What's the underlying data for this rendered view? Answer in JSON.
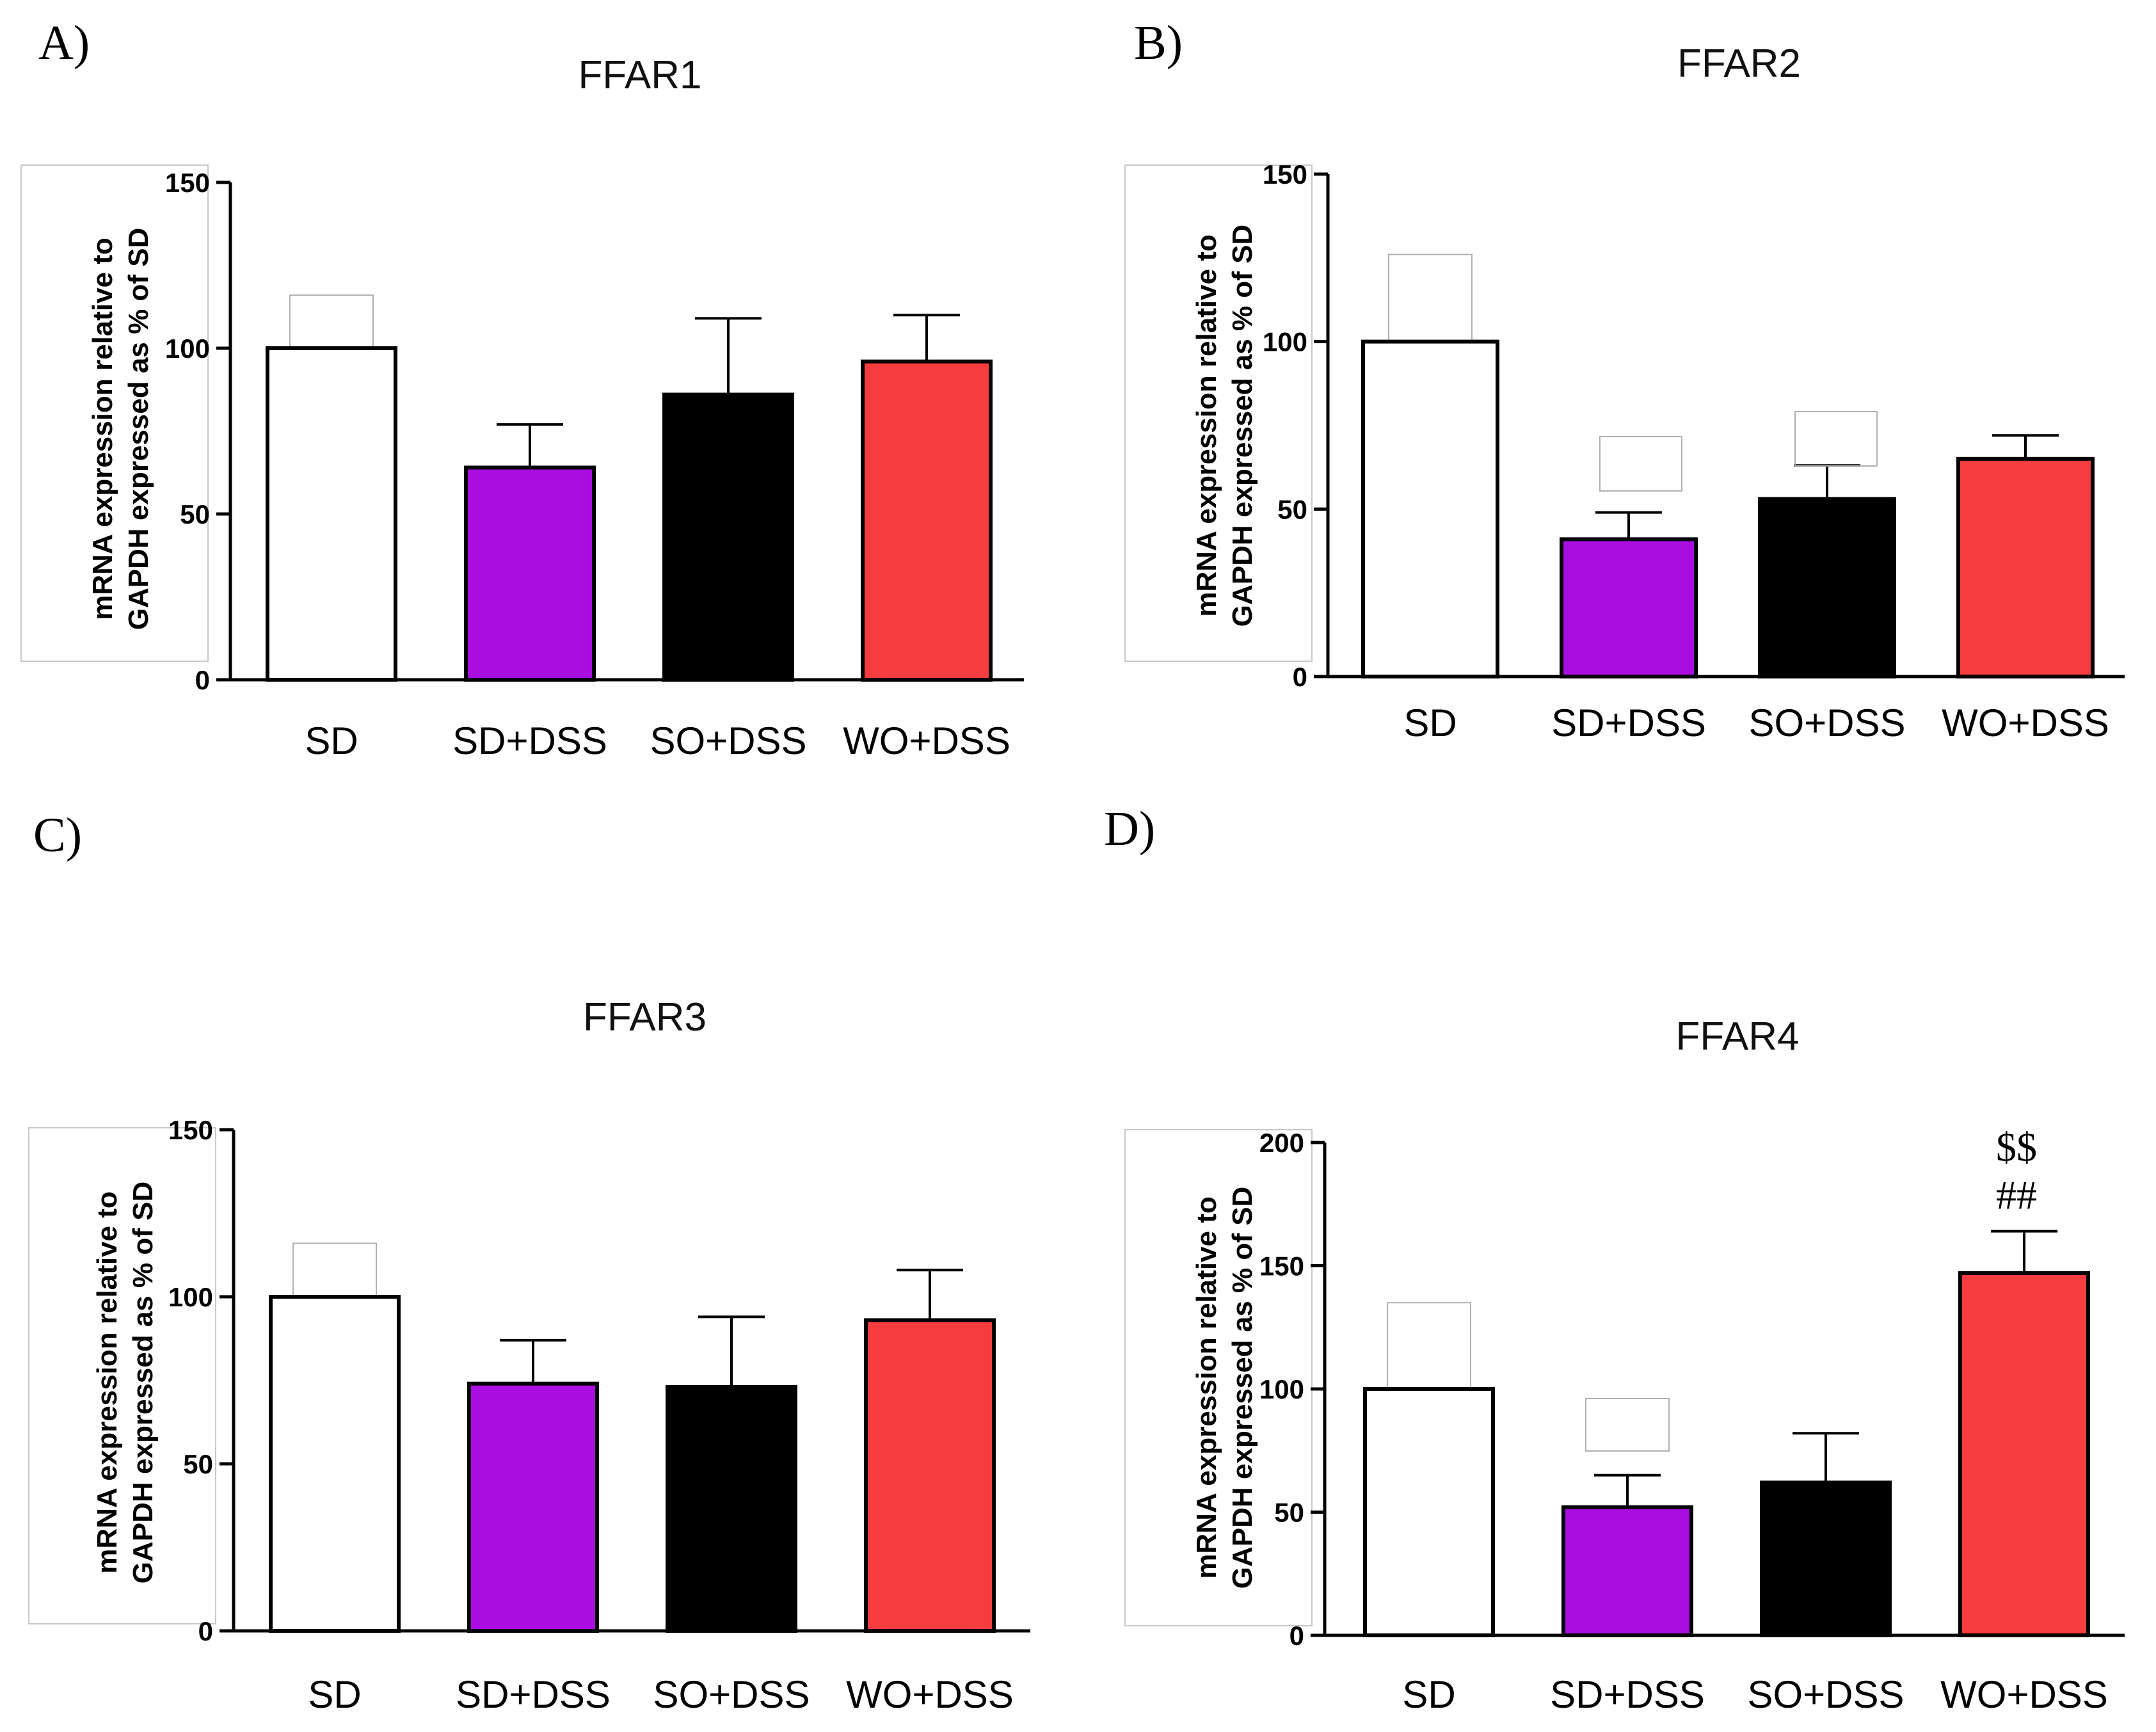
{
  "colors": {
    "SD": "#ffffff",
    "SD+DSS": "#aa0de0",
    "SO+DSS": "#000000",
    "WO+DSS": "#f53d40"
  },
  "chart_data": [
    {
      "panel": "A)",
      "type": "bar",
      "title": "FFAR1",
      "ylabel": [
        "mRNA expression relative to",
        "GAPDH expressed as % of SD"
      ],
      "ylim": [
        0,
        150
      ],
      "yticks": [
        0,
        50,
        100,
        150
      ],
      "categories": [
        "SD",
        "SD+DSS",
        "SO+DSS",
        "WO+DSS"
      ],
      "values": [
        100,
        64,
        86,
        96
      ],
      "errors": [
        16,
        13,
        23,
        14
      ],
      "annotations": []
    },
    {
      "panel": "B)",
      "type": "bar",
      "title": "FFAR2",
      "ylabel": [
        "mRNA expression relative to",
        "GAPDH expressed as % of SD"
      ],
      "ylim": [
        0,
        150
      ],
      "yticks": [
        0,
        50,
        100,
        150
      ],
      "categories": [
        "SD",
        "SD+DSS",
        "SO+DSS",
        "WO+DSS"
      ],
      "values": [
        100,
        41,
        53,
        65
      ],
      "errors": [
        26,
        8,
        10,
        7
      ],
      "annotations": []
    },
    {
      "panel": "C)",
      "type": "bar",
      "title": "FFAR3",
      "ylabel": [
        "mRNA expression relative to",
        "GAPDH expressed as % of SD"
      ],
      "ylim": [
        0,
        150
      ],
      "yticks": [
        0,
        50,
        100,
        150
      ],
      "categories": [
        "SD",
        "SD+DSS",
        "SO+DSS",
        "WO+DSS"
      ],
      "values": [
        100,
        74,
        73,
        93
      ],
      "errors": [
        16,
        13,
        21,
        15
      ],
      "annotations": []
    },
    {
      "panel": "D)",
      "type": "bar",
      "title": "FFAR4",
      "ylabel": [
        "mRNA expression relative to",
        "GAPDH expressed as % of SD"
      ],
      "ylim": [
        0,
        200
      ],
      "yticks": [
        0,
        50,
        100,
        150,
        200
      ],
      "categories": [
        "SD",
        "SD+DSS",
        "SO+DSS",
        "WO+DSS"
      ],
      "values": [
        100,
        52,
        62,
        147
      ],
      "errors": [
        35,
        13,
        20,
        17
      ],
      "annotations": [
        {
          "category": "WO+DSS",
          "lines": [
            "$$",
            "##"
          ]
        }
      ]
    }
  ]
}
